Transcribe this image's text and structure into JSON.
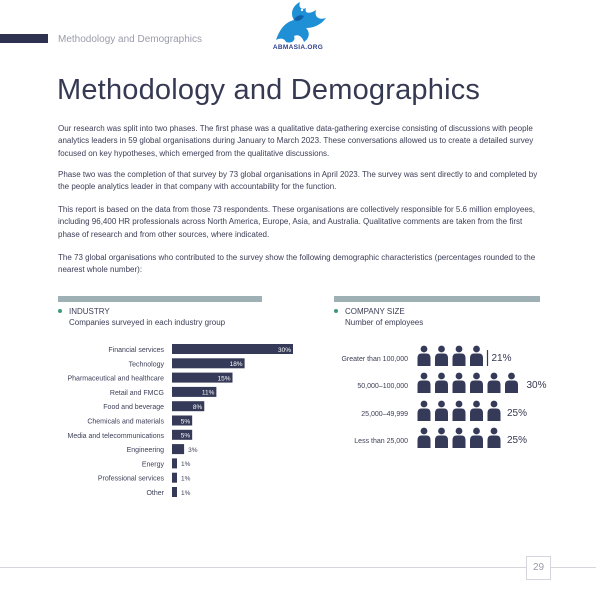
{
  "header": {
    "section_label": "Methodology and Demographics",
    "logo_text": "ABMASIA.ORG"
  },
  "title": "Methodology and Demographics",
  "paragraphs": [
    "Our research was split into two phases. The first phase was a qualitative data-gathering exercise consisting of discussions with people analytics leaders in 59 global organisations during January to March 2023. These conversations allowed us to create a detailed survey focused on key hypotheses, which emerged from the qualitative discussions.",
    "Phase two was the completion of that survey by 73 global organisations in April 2023. The survey was sent directly to and completed by the people analytics leader in that company with accountability for the function.",
    "This report is based on the data from those 73 respondents. These organisations are collectively responsible for 5.6 million employees, including 96,400 HR professionals across North America, Europe, Asia, and Australia. Qualitative comments are taken from the first phase of research and from other sources, where indicated.",
    "The 73 global organisations who contributed to the survey show the following demographic characteristics (percentages rounded to the nearest whole number):"
  ],
  "industry": {
    "heading": "INDUSTRY",
    "subheading": "Companies surveyed in each industry group"
  },
  "company_size": {
    "heading": "COMPANY SIZE",
    "subheading": "Number of employees"
  },
  "page_number": "29",
  "colors": {
    "bar": "#353a58",
    "accent_dot": "#3e9a7c",
    "box_bar": "#9fb0b4",
    "text": "#3b3e57"
  },
  "icon_names": [
    "person-icon"
  ],
  "chart_data": [
    {
      "type": "bar",
      "orientation": "horizontal",
      "categories": [
        "Financial services",
        "Technology",
        "Pharmaceutical and healthcare",
        "Retail and FMCG",
        "Food and beverage",
        "Chemicals and materials",
        "Media and telecommunications",
        "Engineering",
        "Energy",
        "Professional services",
        "Other"
      ],
      "values": [
        30,
        18,
        15,
        11,
        8,
        5,
        5,
        3,
        1,
        1,
        1
      ],
      "value_labels": [
        "30%",
        "18%",
        "15%",
        "11%",
        "8%",
        "5%",
        "5%",
        "3%",
        "1%",
        "1%",
        "1%"
      ],
      "title": "",
      "xlabel": "",
      "ylabel": "",
      "xlim": [
        0,
        30
      ],
      "grid": false
    },
    {
      "type": "pictograph",
      "categories": [
        "Greater than 100,000",
        "50,000–100,000",
        "25,000–49,999",
        "Less than 25,000"
      ],
      "values": [
        21,
        30,
        25,
        25
      ],
      "value_labels": [
        "21%",
        "30%",
        "25%",
        "25%"
      ],
      "icons_shown": [
        4,
        6,
        5,
        5
      ],
      "title": "",
      "grid": false
    }
  ]
}
